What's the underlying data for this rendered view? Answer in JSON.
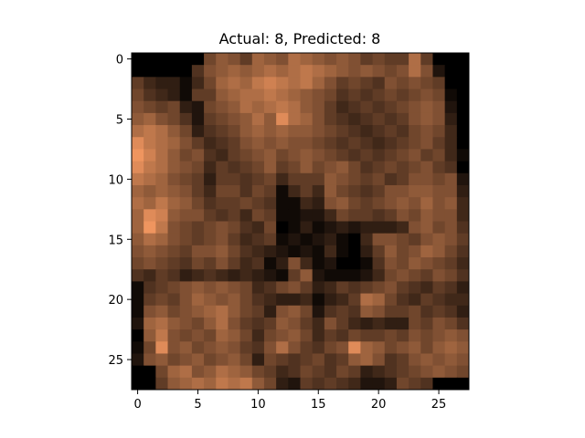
{
  "chart_data": {
    "type": "heatmap",
    "title": "Actual: 8, Predicted: 8",
    "colormap": "copper",
    "xlim": [
      -0.5,
      27.5
    ],
    "ylim": [
      27.5,
      -0.5
    ],
    "x_ticks": [
      0,
      5,
      10,
      15,
      20,
      25
    ],
    "y_ticks": [
      0,
      5,
      10,
      15,
      20,
      25
    ],
    "x_tick_labels": [
      "0",
      "5",
      "10",
      "15",
      "20",
      "25"
    ],
    "y_tick_labels": [
      "0",
      "5",
      "10",
      "15",
      "20",
      "25"
    ],
    "grid": false,
    "rows": 28,
    "cols": 28,
    "values": [
      [
        0.0,
        0.0,
        0.0,
        0.0,
        0.0,
        0.0,
        0.35,
        0.45,
        0.4,
        0.3,
        0.5,
        0.45,
        0.4,
        0.55,
        0.5,
        0.45,
        0.4,
        0.45,
        0.4,
        0.3,
        0.35,
        0.3,
        0.3,
        0.55,
        0.3,
        0.0,
        0.0,
        0.0
      ],
      [
        0.0,
        0.0,
        0.0,
        0.0,
        0.0,
        0.25,
        0.4,
        0.45,
        0.5,
        0.45,
        0.5,
        0.55,
        0.5,
        0.55,
        0.6,
        0.55,
        0.5,
        0.45,
        0.4,
        0.45,
        0.4,
        0.35,
        0.4,
        0.55,
        0.4,
        0.1,
        0.0,
        0.0
      ],
      [
        0.3,
        0.2,
        0.15,
        0.15,
        0.05,
        0.2,
        0.35,
        0.5,
        0.55,
        0.5,
        0.6,
        0.65,
        0.6,
        0.55,
        0.6,
        0.5,
        0.4,
        0.3,
        0.35,
        0.3,
        0.25,
        0.4,
        0.35,
        0.4,
        0.35,
        0.3,
        0.0,
        0.0
      ],
      [
        0.35,
        0.25,
        0.2,
        0.15,
        0.05,
        0.3,
        0.3,
        0.45,
        0.5,
        0.55,
        0.55,
        0.6,
        0.55,
        0.5,
        0.45,
        0.4,
        0.35,
        0.25,
        0.3,
        0.25,
        0.3,
        0.35,
        0.3,
        0.35,
        0.4,
        0.35,
        0.05,
        0.0
      ],
      [
        0.4,
        0.35,
        0.3,
        0.35,
        0.15,
        0.1,
        0.35,
        0.4,
        0.45,
        0.55,
        0.5,
        0.55,
        0.6,
        0.55,
        0.45,
        0.4,
        0.3,
        0.2,
        0.25,
        0.3,
        0.25,
        0.3,
        0.35,
        0.4,
        0.45,
        0.4,
        0.1,
        0.0
      ],
      [
        0.45,
        0.5,
        0.4,
        0.35,
        0.25,
        0.1,
        0.3,
        0.35,
        0.4,
        0.45,
        0.55,
        0.45,
        0.7,
        0.55,
        0.5,
        0.4,
        0.3,
        0.25,
        0.2,
        0.25,
        0.3,
        0.25,
        0.3,
        0.4,
        0.45,
        0.4,
        0.15,
        0.0
      ],
      [
        0.55,
        0.6,
        0.55,
        0.45,
        0.35,
        0.15,
        0.25,
        0.3,
        0.35,
        0.45,
        0.5,
        0.45,
        0.5,
        0.45,
        0.45,
        0.4,
        0.35,
        0.3,
        0.25,
        0.2,
        0.25,
        0.3,
        0.25,
        0.35,
        0.4,
        0.35,
        0.2,
        0.0
      ],
      [
        0.7,
        0.6,
        0.55,
        0.5,
        0.4,
        0.3,
        0.2,
        0.25,
        0.3,
        0.4,
        0.45,
        0.4,
        0.45,
        0.4,
        0.4,
        0.35,
        0.3,
        0.25,
        0.3,
        0.25,
        0.2,
        0.25,
        0.3,
        0.35,
        0.4,
        0.3,
        0.2,
        0.0
      ],
      [
        0.75,
        0.65,
        0.55,
        0.45,
        0.35,
        0.4,
        0.25,
        0.2,
        0.3,
        0.35,
        0.4,
        0.45,
        0.35,
        0.4,
        0.45,
        0.4,
        0.35,
        0.3,
        0.25,
        0.3,
        0.25,
        0.3,
        0.35,
        0.4,
        0.3,
        0.35,
        0.2,
        0.05
      ],
      [
        0.7,
        0.6,
        0.55,
        0.45,
        0.4,
        0.35,
        0.2,
        0.3,
        0.25,
        0.3,
        0.35,
        0.45,
        0.3,
        0.35,
        0.45,
        0.35,
        0.4,
        0.45,
        0.35,
        0.25,
        0.3,
        0.35,
        0.3,
        0.35,
        0.4,
        0.3,
        0.25,
        0.0
      ],
      [
        0.6,
        0.55,
        0.5,
        0.4,
        0.35,
        0.3,
        0.15,
        0.3,
        0.3,
        0.25,
        0.3,
        0.35,
        0.2,
        0.3,
        0.3,
        0.3,
        0.45,
        0.4,
        0.35,
        0.3,
        0.35,
        0.25,
        0.3,
        0.4,
        0.4,
        0.35,
        0.4,
        0.1
      ],
      [
        0.5,
        0.45,
        0.5,
        0.45,
        0.4,
        0.3,
        0.2,
        0.35,
        0.35,
        0.25,
        0.35,
        0.3,
        0.05,
        0.2,
        0.3,
        0.2,
        0.45,
        0.35,
        0.3,
        0.25,
        0.3,
        0.4,
        0.4,
        0.45,
        0.45,
        0.4,
        0.4,
        0.15
      ],
      [
        0.55,
        0.5,
        0.6,
        0.5,
        0.45,
        0.35,
        0.25,
        0.3,
        0.3,
        0.35,
        0.3,
        0.25,
        0.05,
        0.05,
        0.2,
        0.15,
        0.4,
        0.45,
        0.35,
        0.3,
        0.35,
        0.4,
        0.45,
        0.4,
        0.5,
        0.4,
        0.45,
        0.2
      ],
      [
        0.5,
        0.7,
        0.65,
        0.45,
        0.4,
        0.4,
        0.3,
        0.25,
        0.3,
        0.2,
        0.35,
        0.3,
        0.05,
        0.05,
        0.1,
        0.1,
        0.2,
        0.35,
        0.3,
        0.3,
        0.25,
        0.3,
        0.4,
        0.35,
        0.45,
        0.4,
        0.4,
        0.2
      ],
      [
        0.5,
        0.75,
        0.6,
        0.4,
        0.35,
        0.3,
        0.35,
        0.4,
        0.35,
        0.25,
        0.2,
        0.35,
        0.0,
        0.05,
        0.15,
        0.05,
        0.1,
        0.15,
        0.1,
        0.15,
        0.15,
        0.15,
        0.2,
        0.4,
        0.45,
        0.35,
        0.4,
        0.25
      ],
      [
        0.45,
        0.55,
        0.5,
        0.4,
        0.35,
        0.3,
        0.35,
        0.4,
        0.3,
        0.2,
        0.25,
        0.3,
        0.05,
        0.1,
        0.05,
        0.1,
        0.15,
        0.05,
        0.0,
        0.2,
        0.4,
        0.4,
        0.35,
        0.3,
        0.4,
        0.45,
        0.4,
        0.3
      ],
      [
        0.4,
        0.45,
        0.4,
        0.35,
        0.3,
        0.4,
        0.4,
        0.45,
        0.35,
        0.25,
        0.2,
        0.15,
        0.1,
        0.05,
        0.1,
        0.05,
        0.2,
        0.05,
        0.0,
        0.15,
        0.3,
        0.45,
        0.35,
        0.4,
        0.5,
        0.45,
        0.35,
        0.25
      ],
      [
        0.35,
        0.4,
        0.35,
        0.3,
        0.25,
        0.35,
        0.3,
        0.4,
        0.3,
        0.2,
        0.25,
        0.05,
        0.15,
        0.4,
        0.2,
        0.05,
        0.1,
        0.0,
        0.0,
        0.05,
        0.25,
        0.4,
        0.35,
        0.45,
        0.4,
        0.35,
        0.3,
        0.2
      ],
      [
        0.25,
        0.2,
        0.3,
        0.25,
        0.15,
        0.2,
        0.25,
        0.2,
        0.15,
        0.2,
        0.15,
        0.1,
        0.05,
        0.3,
        0.45,
        0.1,
        0.05,
        0.05,
        0.05,
        0.1,
        0.2,
        0.35,
        0.4,
        0.35,
        0.3,
        0.4,
        0.35,
        0.25
      ],
      [
        0.05,
        0.25,
        0.3,
        0.35,
        0.4,
        0.45,
        0.4,
        0.45,
        0.4,
        0.35,
        0.2,
        0.25,
        0.35,
        0.4,
        0.3,
        0.15,
        0.2,
        0.3,
        0.25,
        0.3,
        0.35,
        0.4,
        0.3,
        0.25,
        0.2,
        0.3,
        0.25,
        0.15
      ],
      [
        0.05,
        0.3,
        0.35,
        0.3,
        0.4,
        0.5,
        0.45,
        0.4,
        0.45,
        0.35,
        0.25,
        0.2,
        0.15,
        0.15,
        0.2,
        0.05,
        0.15,
        0.2,
        0.3,
        0.55,
        0.5,
        0.35,
        0.25,
        0.2,
        0.3,
        0.25,
        0.2,
        0.2
      ],
      [
        0.05,
        0.4,
        0.45,
        0.35,
        0.4,
        0.45,
        0.5,
        0.55,
        0.45,
        0.35,
        0.3,
        0.15,
        0.4,
        0.45,
        0.35,
        0.1,
        0.25,
        0.3,
        0.25,
        0.45,
        0.4,
        0.3,
        0.3,
        0.35,
        0.25,
        0.3,
        0.25,
        0.15
      ],
      [
        0.1,
        0.5,
        0.55,
        0.45,
        0.4,
        0.35,
        0.45,
        0.55,
        0.4,
        0.3,
        0.25,
        0.3,
        0.45,
        0.4,
        0.3,
        0.2,
        0.4,
        0.3,
        0.2,
        0.15,
        0.2,
        0.15,
        0.15,
        0.35,
        0.3,
        0.4,
        0.35,
        0.25
      ],
      [
        0.0,
        0.45,
        0.6,
        0.4,
        0.35,
        0.4,
        0.35,
        0.5,
        0.45,
        0.35,
        0.2,
        0.35,
        0.4,
        0.45,
        0.35,
        0.2,
        0.3,
        0.25,
        0.35,
        0.3,
        0.3,
        0.35,
        0.3,
        0.4,
        0.35,
        0.4,
        0.45,
        0.4
      ],
      [
        0.05,
        0.35,
        0.7,
        0.4,
        0.45,
        0.35,
        0.4,
        0.45,
        0.4,
        0.3,
        0.25,
        0.4,
        0.55,
        0.4,
        0.3,
        0.25,
        0.35,
        0.4,
        0.7,
        0.5,
        0.45,
        0.35,
        0.4,
        0.45,
        0.35,
        0.45,
        0.5,
        0.45
      ],
      [
        0.1,
        0.4,
        0.45,
        0.35,
        0.4,
        0.45,
        0.35,
        0.4,
        0.45,
        0.35,
        0.15,
        0.35,
        0.3,
        0.25,
        0.3,
        0.35,
        0.25,
        0.3,
        0.45,
        0.5,
        0.4,
        0.25,
        0.3,
        0.4,
        0.45,
        0.4,
        0.45,
        0.4
      ],
      [
        0.0,
        0.0,
        0.35,
        0.5,
        0.55,
        0.4,
        0.45,
        0.55,
        0.5,
        0.45,
        0.35,
        0.3,
        0.2,
        0.25,
        0.35,
        0.3,
        0.25,
        0.35,
        0.3,
        0.15,
        0.2,
        0.25,
        0.3,
        0.35,
        0.4,
        0.45,
        0.4,
        0.35
      ],
      [
        0.0,
        0.0,
        0.3,
        0.45,
        0.5,
        0.55,
        0.5,
        0.6,
        0.55,
        0.6,
        0.45,
        0.35,
        0.15,
        0.1,
        0.3,
        0.25,
        0.3,
        0.25,
        0.2,
        0.1,
        0.1,
        0.15,
        0.35,
        0.3,
        0.25,
        0.0,
        0.0,
        0.0
      ]
    ]
  }
}
